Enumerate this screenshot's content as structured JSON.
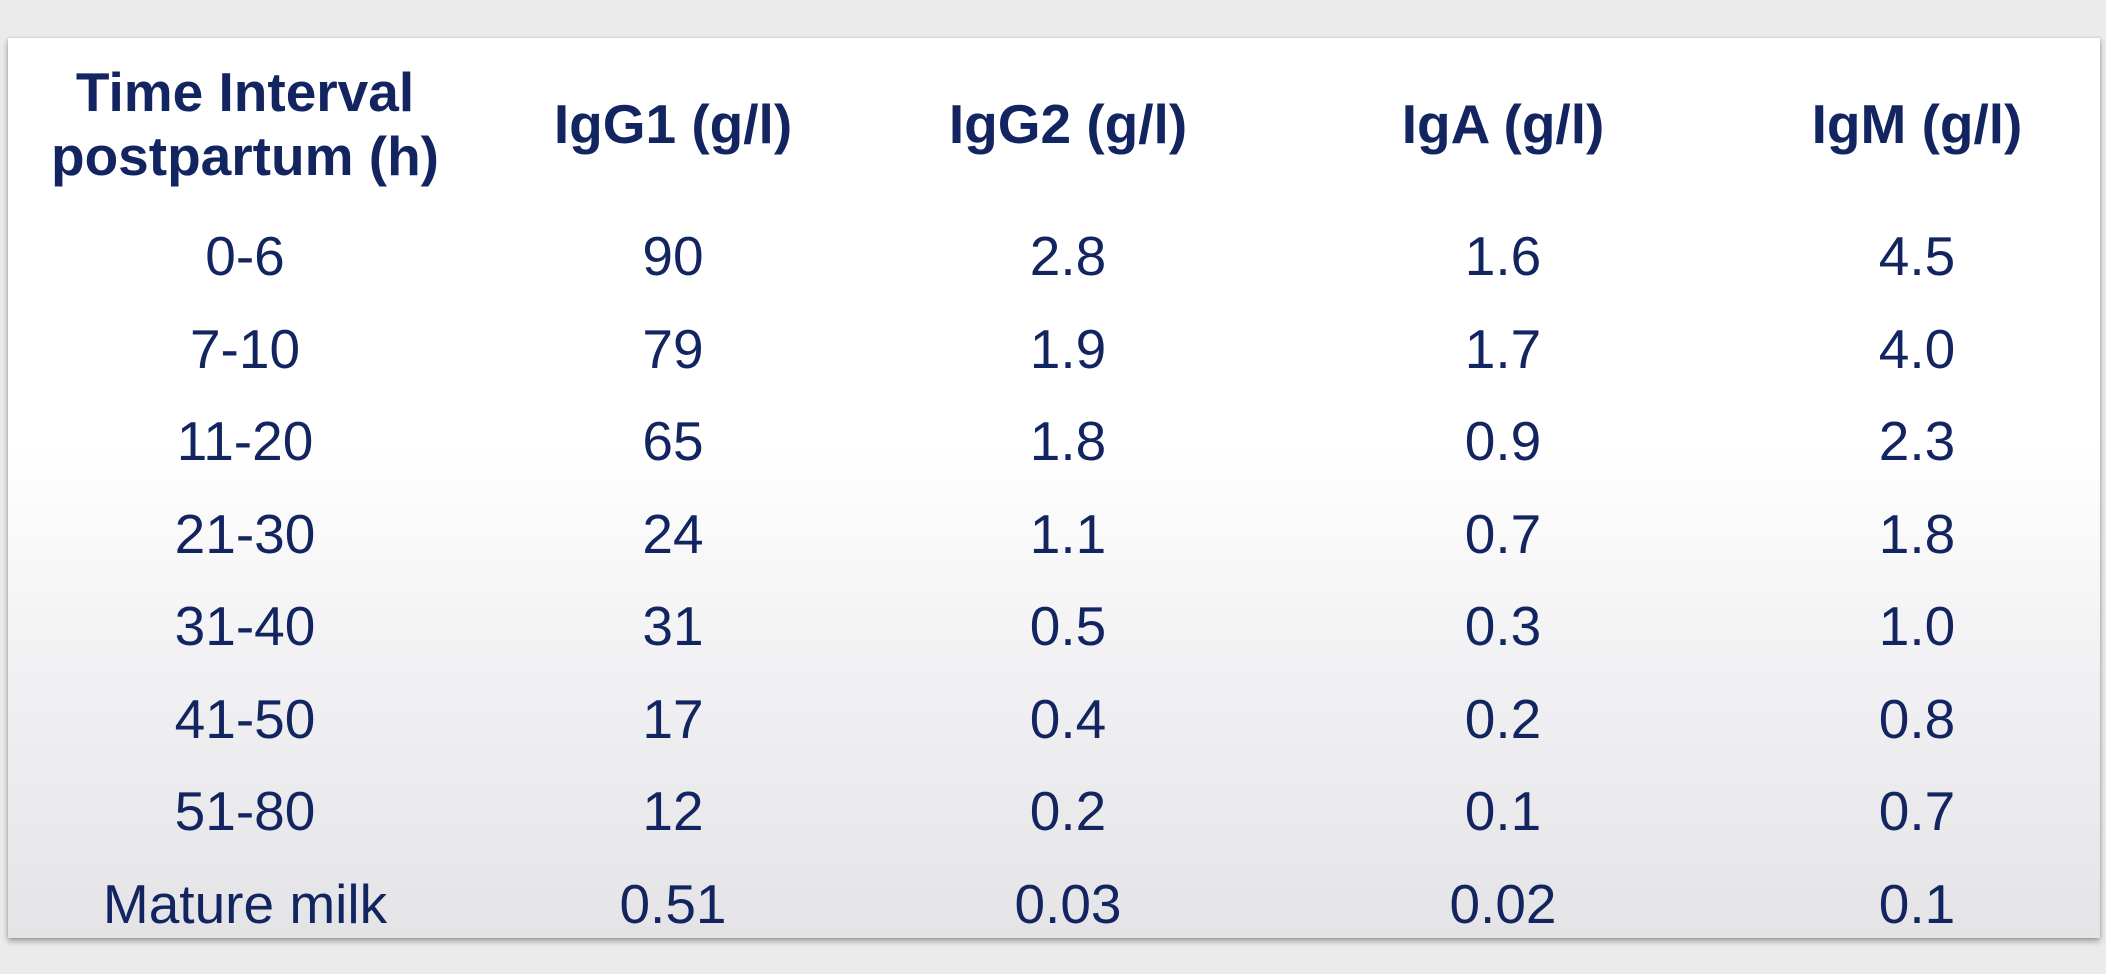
{
  "table": {
    "headers": [
      "Time Interval postpartum (h)",
      "IgG1 (g/l)",
      "IgG2 (g/l)",
      "IgA (g/l)",
      "IgM (g/l)"
    ],
    "rows": [
      [
        "0-6",
        "90",
        "2.8",
        "1.6",
        "4.5"
      ],
      [
        "7-10",
        "79",
        "1.9",
        "1.7",
        "4.0"
      ],
      [
        "11-20",
        "65",
        "1.8",
        "0.9",
        "2.3"
      ],
      [
        "21-30",
        "24",
        "1.1",
        "0.7",
        "1.8"
      ],
      [
        "31-40",
        "31",
        "0.5",
        "0.3",
        "1.0"
      ],
      [
        "41-50",
        "17",
        "0.4",
        "0.2",
        "0.8"
      ],
      [
        "51-80",
        "12",
        "0.2",
        "0.1",
        "0.7"
      ],
      [
        "Mature milk",
        "0.51",
        "0.03",
        "0.02",
        "0.1"
      ]
    ]
  },
  "colors": {
    "text": "#132561",
    "page_background": "#ebebeb",
    "card_background": "#ffffff"
  }
}
